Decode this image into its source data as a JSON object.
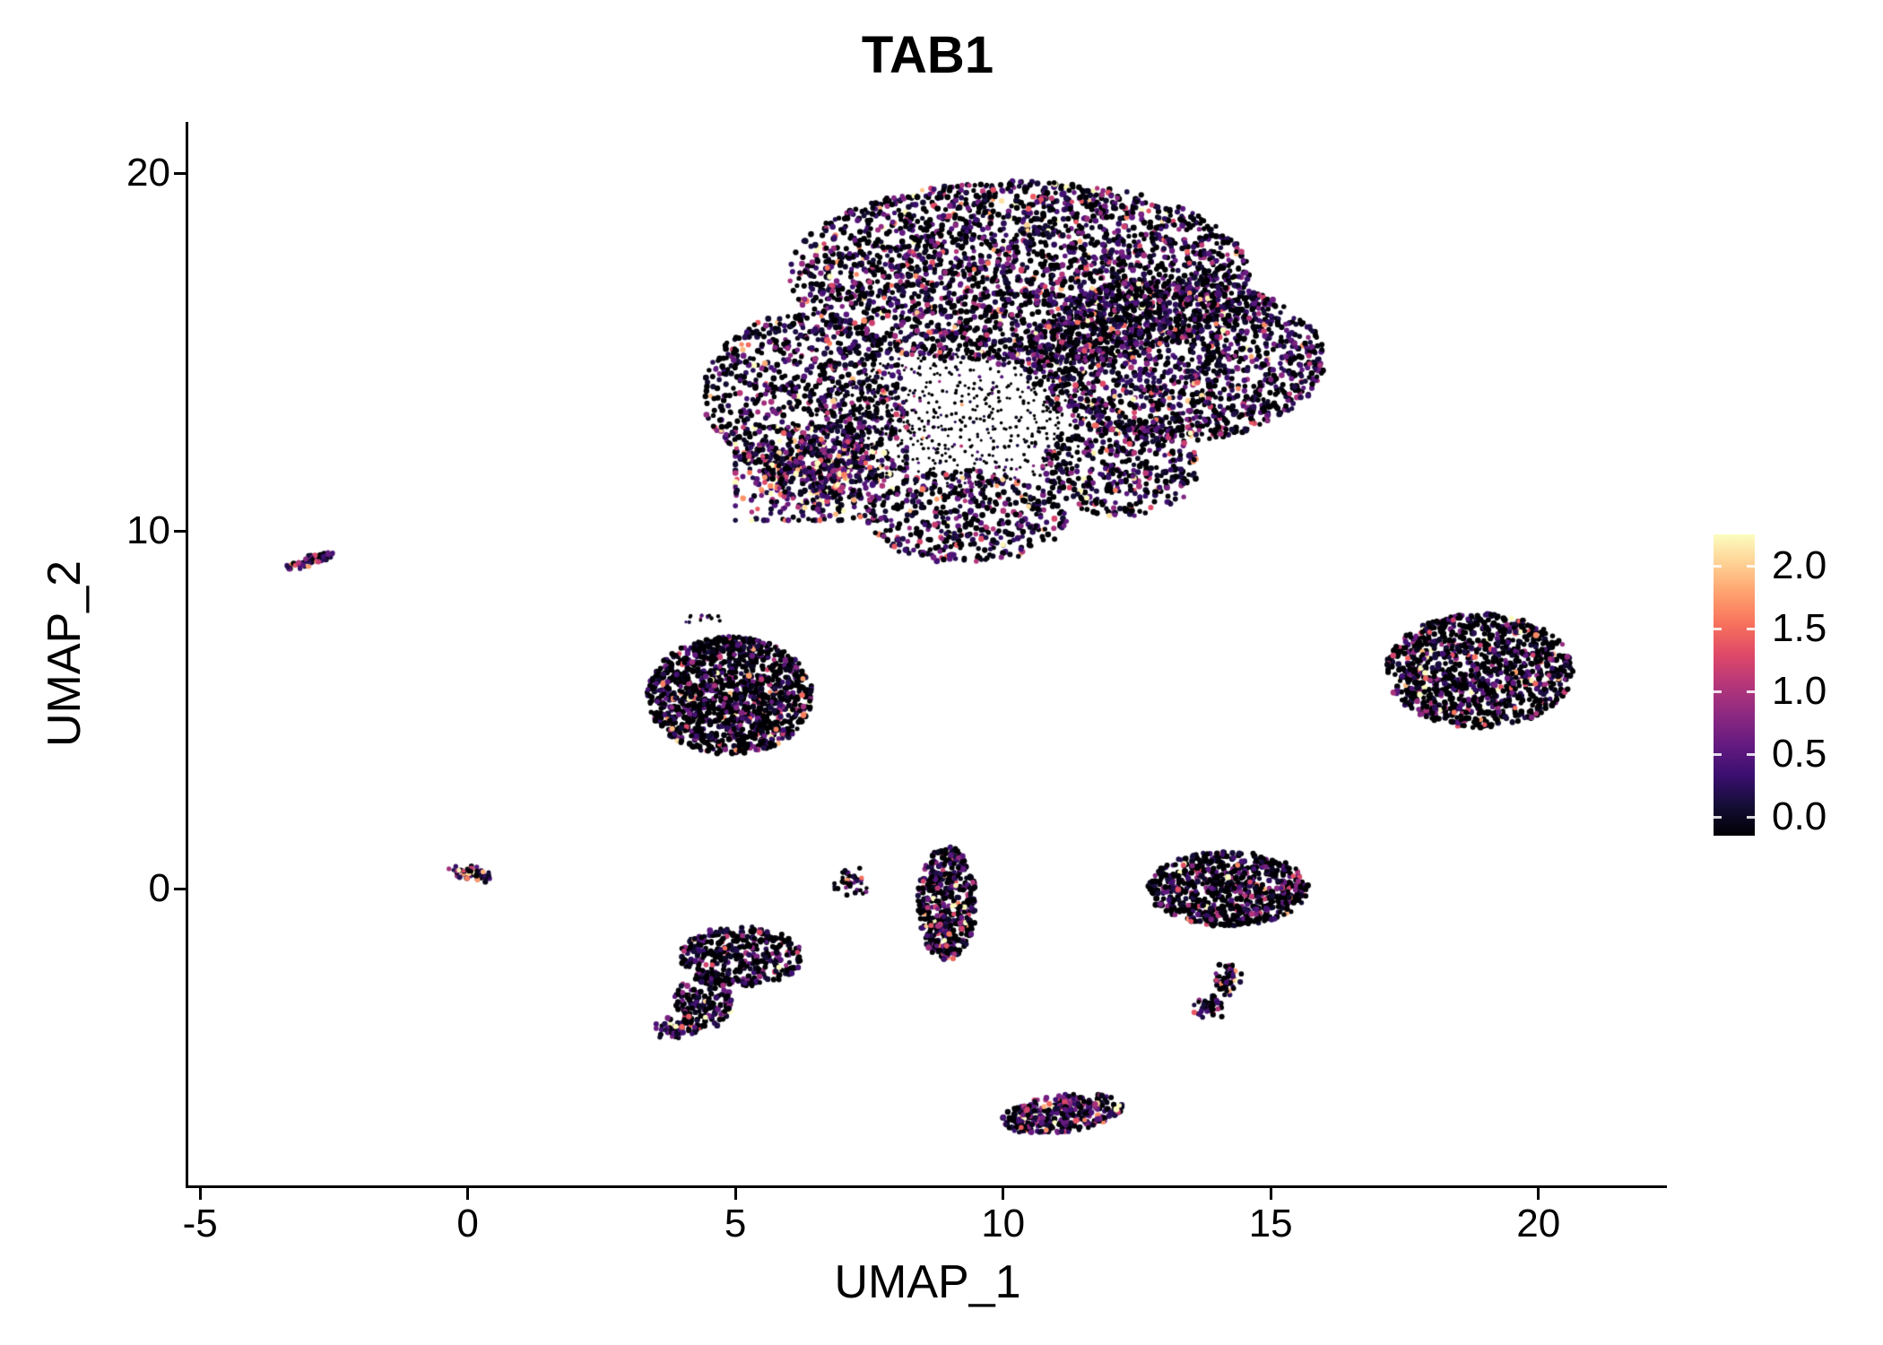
{
  "seed": 42,
  "colorbar": {
    "ticks": [
      {
        "v": 2.0,
        "label": "2.0"
      },
      {
        "v": 1.5,
        "label": "1.5"
      },
      {
        "v": 1.0,
        "label": "1.0"
      },
      {
        "v": 0.5,
        "label": "0.5"
      },
      {
        "v": 0.0,
        "label": "0.0"
      }
    ]
  },
  "chart_data": {
    "type": "scatter",
    "title": "TAB1",
    "xlabel": "UMAP_1",
    "ylabel": "UMAP_2",
    "xlim": [
      -5.22,
      22.4
    ],
    "ylim": [
      -8.3,
      21.44
    ],
    "x_ticks": [
      {
        "v": -5,
        "label": "-5"
      },
      {
        "v": 0,
        "label": "0"
      },
      {
        "v": 5,
        "label": "5"
      },
      {
        "v": 10,
        "label": "10"
      },
      {
        "v": 15,
        "label": "15"
      },
      {
        "v": 20,
        "label": "20"
      }
    ],
    "y_ticks": [
      {
        "v": 0,
        "label": "0"
      },
      {
        "v": 10,
        "label": "10"
      },
      {
        "v": 20,
        "label": "20"
      }
    ],
    "value_range": [
      0,
      2.1
    ],
    "colormap": "magma",
    "colormap_stops": [
      "#000004",
      "#140e36",
      "#3b0f70",
      "#641a80",
      "#8c2981",
      "#b5367a",
      "#de4968",
      "#f7705c",
      "#fe9f6d",
      "#fecf92",
      "#fcfdbf"
    ],
    "legend_position": "right",
    "grid": false,
    "clusters": [
      {
        "name": "main-top",
        "cx": 10.3,
        "cy": 17.2,
        "rx": 4.3,
        "ry": 2.6,
        "rot": 0,
        "n": 2600,
        "dist": "uniform",
        "zero_frac": 0.38,
        "expr_scale": 0.5,
        "r": 3.0
      },
      {
        "name": "main-right-lobe",
        "cx": 13.2,
        "cy": 14.8,
        "rx": 2.8,
        "ry": 2.3,
        "rot": 0,
        "n": 1600,
        "dist": "uniform",
        "zero_frac": 0.38,
        "expr_scale": 0.5,
        "r": 3.0
      },
      {
        "name": "main-left-arm",
        "cx": 6.3,
        "cy": 13.8,
        "rx": 1.9,
        "ry": 2.3,
        "rot": 0,
        "n": 800,
        "dist": "uniform",
        "zero_frac": 0.42,
        "expr_scale": 0.45,
        "r": 3.0
      },
      {
        "name": "main-pink-region",
        "cx": 6.6,
        "cy": 11.6,
        "rx": 1.6,
        "ry": 1.3,
        "rot": 0,
        "n": 550,
        "dist": "gauss",
        "zero_frac": 0.12,
        "expr_scale": 0.8,
        "r": 3.0
      },
      {
        "name": "main-bottom-ext",
        "cx": 9.3,
        "cy": 10.4,
        "rx": 1.9,
        "ry": 1.3,
        "rot": 0,
        "n": 450,
        "dist": "uniform",
        "zero_frac": 0.38,
        "expr_scale": 0.5,
        "r": 3.0
      },
      {
        "name": "main-lower-right",
        "cx": 12.2,
        "cy": 11.8,
        "rx": 1.5,
        "ry": 1.4,
        "rot": 0,
        "n": 420,
        "dist": "uniform",
        "zero_frac": 0.4,
        "expr_scale": 0.5,
        "r": 3.0
      },
      {
        "name": "main-sparse-interior",
        "cx": 9.2,
        "cy": 13.1,
        "rx": 2.7,
        "ry": 1.9,
        "rot": 0,
        "n": 650,
        "dist": "uniform",
        "zero_frac": 0.75,
        "expr_scale": 0.3,
        "r": 1.8
      },
      {
        "name": "left-streak",
        "cx": -2.9,
        "cy": 9.2,
        "rx": 0.5,
        "ry": 0.13,
        "rot": 25,
        "n": 70,
        "dist": "gauss",
        "zero_frac": 0.1,
        "expr_scale": 0.9,
        "r": 2.8
      },
      {
        "name": "left-mid-blob",
        "cx": 4.9,
        "cy": 5.4,
        "rx": 1.55,
        "ry": 1.65,
        "rot": 0,
        "n": 1300,
        "dist": "uniform",
        "zero_frac": 0.55,
        "expr_scale": 0.5,
        "r": 3.0
      },
      {
        "name": "left-mid-outliers",
        "cx": 4.4,
        "cy": 7.6,
        "rx": 0.35,
        "ry": 0.15,
        "rot": 0,
        "n": 14,
        "dist": "gauss",
        "zero_frac": 0.6,
        "expr_scale": 0.3,
        "r": 2.0
      },
      {
        "name": "right-blob",
        "cx": 18.9,
        "cy": 6.1,
        "rx": 1.75,
        "ry": 1.6,
        "rot": 0,
        "n": 1100,
        "dist": "uniform",
        "zero_frac": 0.55,
        "expr_scale": 0.55,
        "r": 3.0
      },
      {
        "name": "tiny-left-blob",
        "cx": 0.05,
        "cy": 0.45,
        "rx": 0.42,
        "ry": 0.18,
        "rot": -15,
        "n": 60,
        "dist": "gauss",
        "zero_frac": 0.15,
        "expr_scale": 0.7,
        "r": 2.8
      },
      {
        "name": "lower-left-main",
        "cx": 5.1,
        "cy": -1.9,
        "rx": 1.15,
        "ry": 0.85,
        "rot": 0,
        "n": 380,
        "dist": "uniform",
        "zero_frac": 0.5,
        "expr_scale": 0.45,
        "r": 3.0
      },
      {
        "name": "lower-left-arm",
        "cx": 4.4,
        "cy": -3.2,
        "rx": 0.55,
        "ry": 0.75,
        "rot": 0,
        "n": 160,
        "dist": "uniform",
        "zero_frac": 0.45,
        "expr_scale": 0.5,
        "r": 3.0
      },
      {
        "name": "lower-left-tip",
        "cx": 3.9,
        "cy": -3.9,
        "rx": 0.38,
        "ry": 0.28,
        "rot": 0,
        "n": 60,
        "dist": "gauss",
        "zero_frac": 0.3,
        "expr_scale": 0.6,
        "r": 3.0
      },
      {
        "name": "small-mid-bits",
        "cx": 7.15,
        "cy": 0.2,
        "rx": 0.3,
        "ry": 0.38,
        "rot": 0,
        "n": 45,
        "dist": "gauss",
        "zero_frac": 0.35,
        "expr_scale": 0.55,
        "r": 2.6
      },
      {
        "name": "vertical-mid",
        "cx": 8.95,
        "cy": -0.4,
        "rx": 0.55,
        "ry": 1.6,
        "rot": 0,
        "n": 500,
        "dist": "uniform",
        "zero_frac": 0.45,
        "expr_scale": 0.55,
        "r": 3.0
      },
      {
        "name": "right-mid-blob",
        "cx": 14.2,
        "cy": 0.0,
        "rx": 1.5,
        "ry": 1.05,
        "rot": 0,
        "n": 760,
        "dist": "uniform",
        "zero_frac": 0.5,
        "expr_scale": 0.5,
        "r": 3.0
      },
      {
        "name": "right-mid-hook-a",
        "cx": 14.15,
        "cy": -2.55,
        "rx": 0.3,
        "ry": 0.42,
        "rot": 0,
        "n": 60,
        "dist": "gauss",
        "zero_frac": 0.35,
        "expr_scale": 0.55,
        "r": 2.8
      },
      {
        "name": "right-mid-hook-b",
        "cx": 13.85,
        "cy": -3.3,
        "rx": 0.28,
        "ry": 0.3,
        "rot": 0,
        "n": 45,
        "dist": "gauss",
        "zero_frac": 0.35,
        "expr_scale": 0.55,
        "r": 2.8
      },
      {
        "name": "bottom-blob",
        "cx": 11.1,
        "cy": -6.3,
        "rx": 1.15,
        "ry": 0.52,
        "rot": 12,
        "n": 330,
        "dist": "uniform",
        "zero_frac": 0.25,
        "expr_scale": 0.65,
        "r": 3.0
      }
    ]
  }
}
